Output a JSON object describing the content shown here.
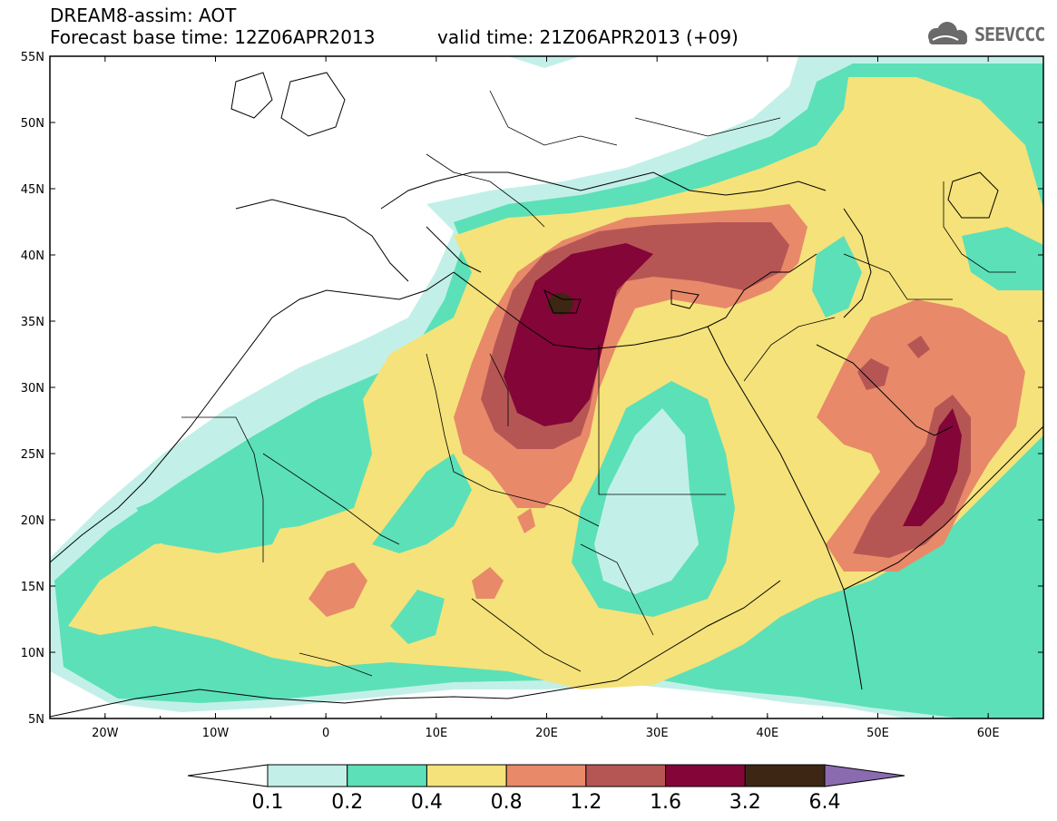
{
  "header": {
    "title": "DREAM8-assim: AOT",
    "subtitle": "Forecast base time: 12Z06APR2013",
    "valid_time": "valid time: 21Z06APR2013 (+09)"
  },
  "logo": {
    "text": "SEEVCCC",
    "icon": "cloud-icon"
  },
  "map": {
    "lon_range": [
      -25,
      65
    ],
    "lat_range": [
      5,
      55
    ],
    "lon_ticks": [
      "20W",
      "10W",
      "0",
      "10E",
      "20E",
      "30E",
      "40E",
      "50E",
      "60E"
    ],
    "lat_ticks": [
      "55N",
      "50N",
      "45N",
      "40N",
      "35N",
      "30N",
      "25N",
      "20N",
      "15N",
      "10N",
      "5N"
    ]
  },
  "colorbar": {
    "labels": [
      "0.1",
      "0.2",
      "0.4",
      "0.8",
      "1.2",
      "1.6",
      "3.2",
      "6.4"
    ],
    "colors": [
      "#c2f0e8",
      "#5ce0b8",
      "#f5e27a",
      "#e8896a",
      "#b65654",
      "#840537",
      "#3d2614",
      "#8b6bb0"
    ],
    "under_color": "#ffffff"
  }
}
